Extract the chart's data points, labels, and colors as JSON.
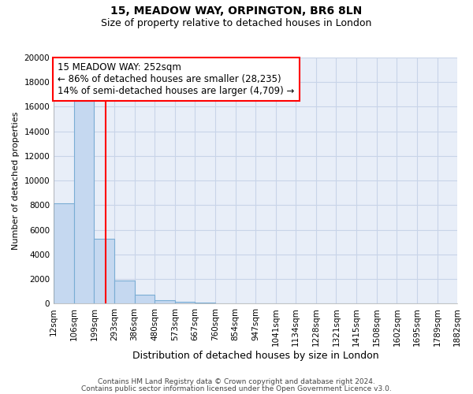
{
  "title1": "15, MEADOW WAY, ORPINGTON, BR6 8LN",
  "title2": "Size of property relative to detached houses in London",
  "xlabel": "Distribution of detached houses by size in London",
  "ylabel": "Number of detached properties",
  "bar_color": "#c5d8f0",
  "bar_edge_color": "#7aadd4",
  "grid_color": "#c8d4e8",
  "bg_color": "#e8eef8",
  "red_line_x": 252,
  "annotation_title": "15 MEADOW WAY: 252sqm",
  "annotation_line2": "← 86% of detached houses are smaller (28,235)",
  "annotation_line3": "14% of semi-detached houses are larger (4,709) →",
  "footer1": "Contains HM Land Registry data © Crown copyright and database right 2024.",
  "footer2": "Contains public sector information licensed under the Open Government Licence v3.0.",
  "bins": [
    12,
    106,
    199,
    293,
    386,
    480,
    573,
    667,
    760,
    854,
    947,
    1041,
    1134,
    1228,
    1321,
    1415,
    1508,
    1602,
    1695,
    1789,
    1882
  ],
  "values": [
    8150,
    16500,
    5250,
    1850,
    750,
    280,
    150,
    100,
    50,
    0,
    0,
    0,
    0,
    0,
    0,
    0,
    0,
    0,
    0,
    0
  ],
  "ylim": [
    0,
    20000
  ],
  "yticks": [
    0,
    2000,
    4000,
    6000,
    8000,
    10000,
    12000,
    14000,
    16000,
    18000,
    20000
  ],
  "title1_fontsize": 10,
  "title2_fontsize": 9,
  "xlabel_fontsize": 9,
  "ylabel_fontsize": 8,
  "tick_fontsize": 7.5,
  "footer_fontsize": 6.5,
  "ann_fontsize": 8.5
}
